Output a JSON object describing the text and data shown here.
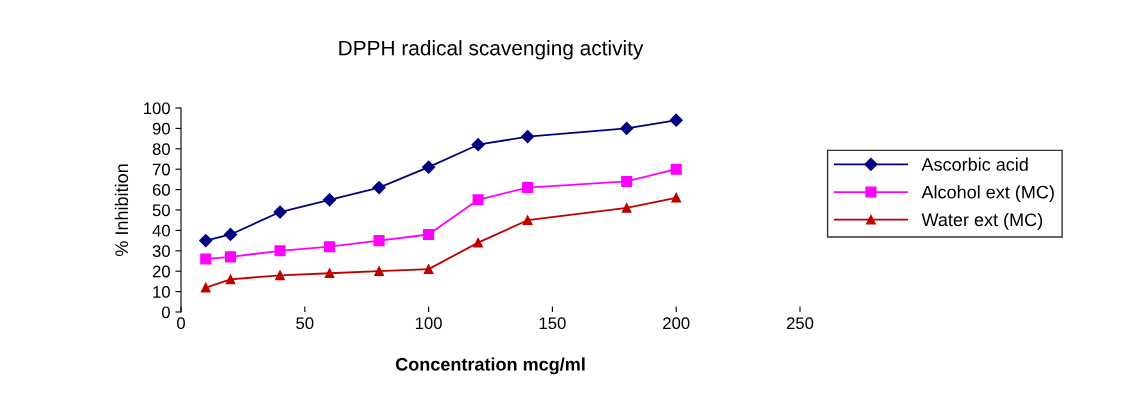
{
  "chart_data": {
    "type": "line",
    "title": "DPPH radical scavenging activity",
    "xlabel": "Concentration mcg/ml",
    "ylabel": "% Inhibition",
    "x": [
      10,
      20,
      40,
      60,
      80,
      100,
      120,
      140,
      180,
      200
    ],
    "series": [
      {
        "name": "Ascorbic acid",
        "color": "#000080",
        "marker": "diamond",
        "values": [
          35,
          38,
          49,
          55,
          61,
          71,
          82,
          86,
          90,
          94
        ]
      },
      {
        "name": "Alcohol ext (MC)",
        "color": "#ff00ff",
        "marker": "square",
        "values": [
          26,
          27,
          30,
          32,
          35,
          38,
          55,
          61,
          64,
          70
        ]
      },
      {
        "name": "Water ext (MC)",
        "color": "#c00000",
        "marker": "triangle",
        "values": [
          12,
          16,
          18,
          19,
          20,
          21,
          34,
          45,
          51,
          56
        ]
      }
    ],
    "xlim": [
      0,
      250
    ],
    "xticks": [
      0,
      50,
      100,
      150,
      200,
      250
    ],
    "ylim": [
      0,
      100
    ],
    "yticks": [
      0,
      10,
      20,
      30,
      40,
      50,
      60,
      70,
      80,
      90,
      100
    ],
    "grid": false,
    "legend": "right",
    "line_style": "solid"
  }
}
